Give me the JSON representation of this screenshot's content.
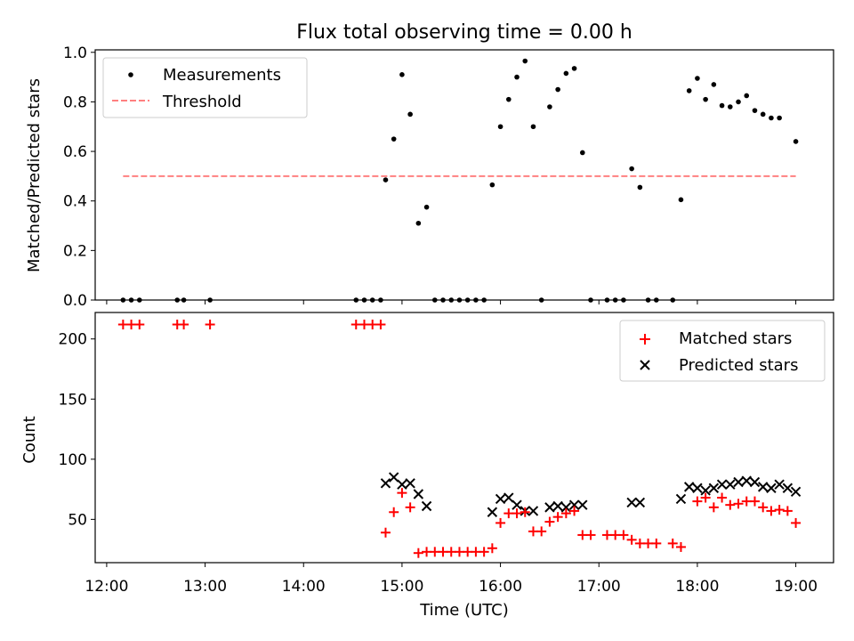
{
  "figure": {
    "title": "Flux total observing time = 0.00 h"
  },
  "chart_data": [
    {
      "type": "scatter",
      "panel": "top",
      "ylabel": "Matched/Predicted stars",
      "ylim": [
        0,
        1.01
      ],
      "yticks": [
        0.0,
        0.2,
        0.4,
        0.6,
        0.8,
        1.0
      ],
      "ytick_labels": [
        "0.0",
        "0.2",
        "0.4",
        "0.6",
        "0.8",
        "1.0"
      ],
      "xlim": [
        "11:53",
        "19:23"
      ],
      "grid": false,
      "legend": "top-left",
      "series": [
        {
          "name": "Measurements",
          "marker": "dot",
          "color": "#000000",
          "points": [
            [
              "12:10",
              0.0
            ],
            [
              "12:15",
              0.0
            ],
            [
              "12:20",
              0.0
            ],
            [
              "12:43",
              0.0
            ],
            [
              "12:47",
              0.0
            ],
            [
              "13:03",
              0.0
            ],
            [
              "14:32",
              0.0
            ],
            [
              "14:37",
              0.0
            ],
            [
              "14:42",
              0.0
            ],
            [
              "14:47",
              0.0
            ],
            [
              "14:50",
              0.485
            ],
            [
              "14:55",
              0.65
            ],
            [
              "15:00",
              0.91
            ],
            [
              "15:05",
              0.75
            ],
            [
              "15:10",
              0.31
            ],
            [
              "15:15",
              0.375
            ],
            [
              "15:20",
              0.0
            ],
            [
              "15:25",
              0.0
            ],
            [
              "15:30",
              0.0
            ],
            [
              "15:35",
              0.0
            ],
            [
              "15:40",
              0.0
            ],
            [
              "15:45",
              0.0
            ],
            [
              "15:50",
              0.0
            ],
            [
              "15:55",
              0.465
            ],
            [
              "16:00",
              0.7
            ],
            [
              "16:05",
              0.81
            ],
            [
              "16:10",
              0.9
            ],
            [
              "16:15",
              0.965
            ],
            [
              "16:20",
              0.7
            ],
            [
              "16:25",
              0.0
            ],
            [
              "16:30",
              0.78
            ],
            [
              "16:35",
              0.85
            ],
            [
              "16:40",
              0.915
            ],
            [
              "16:45",
              0.935
            ],
            [
              "16:50",
              0.595
            ],
            [
              "16:55",
              0.0
            ],
            [
              "17:05",
              0.0
            ],
            [
              "17:10",
              0.0
            ],
            [
              "17:15",
              0.0
            ],
            [
              "17:20",
              0.53
            ],
            [
              "17:25",
              0.455
            ],
            [
              "17:30",
              0.0
            ],
            [
              "17:35",
              0.0
            ],
            [
              "17:45",
              0.0
            ],
            [
              "17:50",
              0.405
            ],
            [
              "17:55",
              0.845
            ],
            [
              "18:00",
              0.895
            ],
            [
              "18:05",
              0.81
            ],
            [
              "18:10",
              0.87
            ],
            [
              "18:15",
              0.785
            ],
            [
              "18:20",
              0.78
            ],
            [
              "18:25",
              0.8
            ],
            [
              "18:30",
              0.825
            ],
            [
              "18:35",
              0.765
            ],
            [
              "18:40",
              0.75
            ],
            [
              "18:45",
              0.735
            ],
            [
              "18:50",
              0.735
            ],
            [
              "19:00",
              0.64
            ]
          ]
        },
        {
          "name": "Threshold",
          "marker": "dashed-line",
          "color": "#ff8080",
          "points": [
            [
              "12:10",
              0.5
            ],
            [
              "19:00",
              0.5
            ]
          ]
        }
      ]
    },
    {
      "type": "scatter",
      "panel": "bottom",
      "xlabel": "Time (UTC)",
      "ylabel": "Count",
      "ylim": [
        14,
        222
      ],
      "yticks": [
        50,
        100,
        150,
        200
      ],
      "ytick_labels": [
        "50",
        "100",
        "150",
        "200"
      ],
      "xlim": [
        "11:53",
        "19:23"
      ],
      "xticks": [
        "12:00",
        "13:00",
        "14:00",
        "15:00",
        "16:00",
        "17:00",
        "18:00",
        "19:00"
      ],
      "grid": false,
      "legend": "top-right",
      "series": [
        {
          "name": "Matched stars",
          "marker": "plus",
          "color": "#ff0000",
          "points": [
            [
              "12:10",
              212
            ],
            [
              "12:15",
              212
            ],
            [
              "12:20",
              212
            ],
            [
              "12:43",
              212
            ],
            [
              "12:47",
              212
            ],
            [
              "13:03",
              212
            ],
            [
              "14:32",
              212
            ],
            [
              "14:37",
              212
            ],
            [
              "14:42",
              212
            ],
            [
              "14:47",
              212
            ],
            [
              "14:50",
              39
            ],
            [
              "14:55",
              56
            ],
            [
              "15:00",
              72
            ],
            [
              "15:05",
              60
            ],
            [
              "15:10",
              22
            ],
            [
              "15:15",
              23
            ],
            [
              "15:20",
              23
            ],
            [
              "15:25",
              23
            ],
            [
              "15:30",
              23
            ],
            [
              "15:35",
              23
            ],
            [
              "15:40",
              23
            ],
            [
              "15:45",
              23
            ],
            [
              "15:50",
              23
            ],
            [
              "15:55",
              26
            ],
            [
              "16:00",
              47
            ],
            [
              "16:05",
              55
            ],
            [
              "16:10",
              55
            ],
            [
              "16:15",
              56
            ],
            [
              "16:20",
              40
            ],
            [
              "16:25",
              40
            ],
            [
              "16:30",
              48
            ],
            [
              "16:35",
              52
            ],
            [
              "16:40",
              55
            ],
            [
              "16:45",
              57
            ],
            [
              "16:50",
              37
            ],
            [
              "16:55",
              37
            ],
            [
              "17:05",
              37
            ],
            [
              "17:10",
              37
            ],
            [
              "17:15",
              37
            ],
            [
              "17:20",
              33
            ],
            [
              "17:25",
              30
            ],
            [
              "17:30",
              30
            ],
            [
              "17:35",
              30
            ],
            [
              "17:45",
              30
            ],
            [
              "17:50",
              27
            ],
            [
              "18:00",
              65
            ],
            [
              "18:05",
              68
            ],
            [
              "18:10",
              60
            ],
            [
              "18:15",
              68
            ],
            [
              "18:20",
              62
            ],
            [
              "18:25",
              63
            ],
            [
              "18:30",
              65
            ],
            [
              "18:35",
              65
            ],
            [
              "18:40",
              60
            ],
            [
              "18:45",
              57
            ],
            [
              "18:50",
              58
            ],
            [
              "18:55",
              57
            ],
            [
              "19:00",
              47
            ]
          ]
        },
        {
          "name": "Predicted stars",
          "marker": "x",
          "color": "#000000",
          "points": [
            [
              "14:50",
              80
            ],
            [
              "14:55",
              85
            ],
            [
              "15:00",
              79
            ],
            [
              "15:05",
              80
            ],
            [
              "15:10",
              71
            ],
            [
              "15:15",
              61
            ],
            [
              "15:55",
              56
            ],
            [
              "16:00",
              67
            ],
            [
              "16:05",
              68
            ],
            [
              "16:10",
              62
            ],
            [
              "16:15",
              57
            ],
            [
              "16:20",
              57
            ],
            [
              "16:30",
              60
            ],
            [
              "16:35",
              61
            ],
            [
              "16:40",
              60
            ],
            [
              "16:45",
              62
            ],
            [
              "16:50",
              62
            ],
            [
              "17:20",
              64
            ],
            [
              "17:25",
              64
            ],
            [
              "17:50",
              67
            ],
            [
              "17:55",
              77
            ],
            [
              "18:00",
              76
            ],
            [
              "18:05",
              74
            ],
            [
              "18:10",
              76
            ],
            [
              "18:15",
              79
            ],
            [
              "18:20",
              79
            ],
            [
              "18:25",
              81
            ],
            [
              "18:30",
              82
            ],
            [
              "18:35",
              81
            ],
            [
              "18:40",
              77
            ],
            [
              "18:45",
              76
            ],
            [
              "18:50",
              79
            ],
            [
              "18:55",
              76
            ],
            [
              "19:00",
              73
            ]
          ]
        }
      ]
    }
  ]
}
